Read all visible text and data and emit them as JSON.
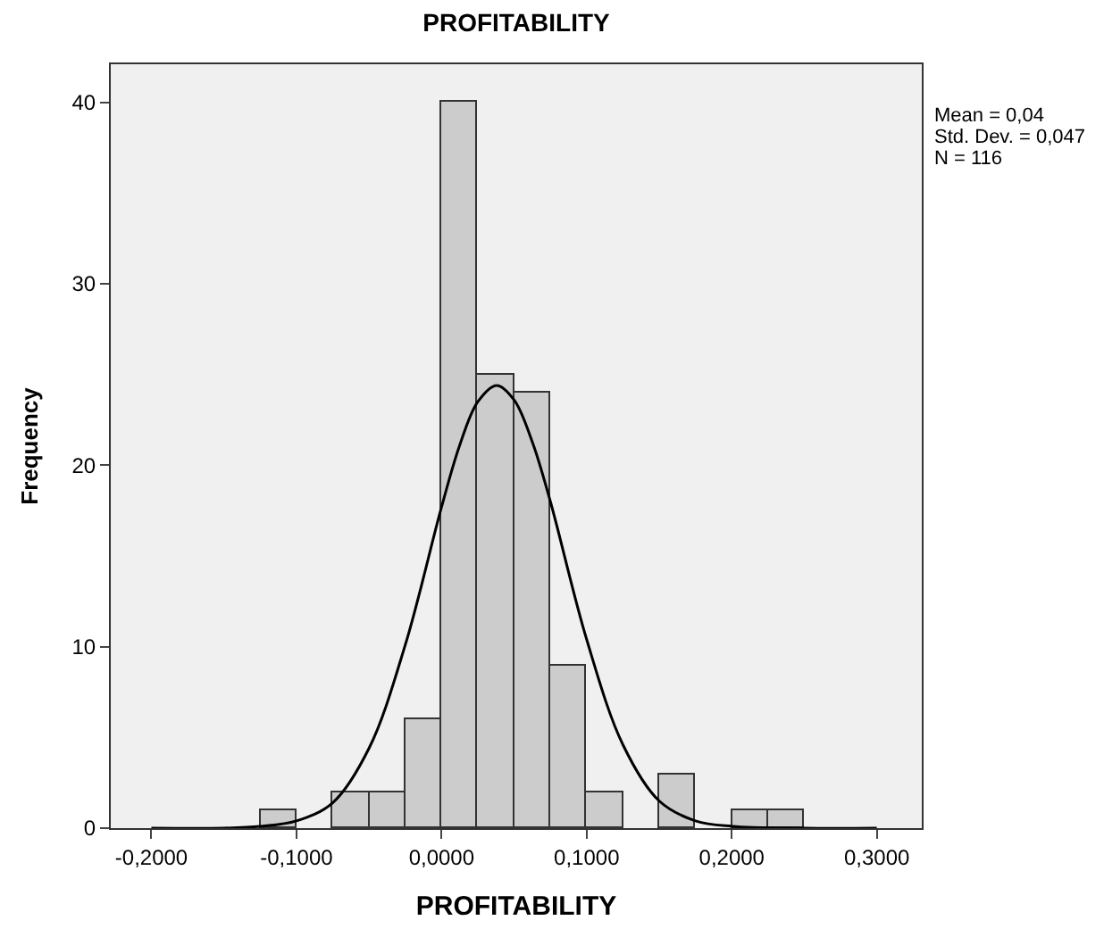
{
  "chart_data": {
    "type": "histogram",
    "title": "PROFITABILITY",
    "xlabel": "PROFITABILITY",
    "ylabel": "Frequency",
    "bins": [
      -0.125,
      -0.1,
      -0.075,
      -0.05,
      -0.025,
      0,
      0.025,
      0.05,
      0.075,
      0.1,
      0.125,
      0.15,
      0.175,
      0.2,
      0.225,
      0.25
    ],
    "values": [
      1,
      0,
      2,
      2,
      6,
      40,
      25,
      24,
      9,
      2,
      0,
      3,
      0,
      1,
      1
    ],
    "color": "#cccccc",
    "series": [
      {
        "type": "line",
        "color": "#000000",
        "x": [
          -0.2,
          -0.15,
          -0.125,
          -0.1,
          -0.075,
          -0.05,
          -0.025,
          0,
          0.0125,
          0.025,
          0.038,
          0.05,
          0.0625,
          0.075,
          0.1,
          0.125,
          0.15,
          0.175,
          0.2,
          0.25,
          0.3
        ],
        "values": [
          0,
          0,
          0.1,
          0.4,
          1.4,
          4.4,
          10.1,
          17.7,
          21.1,
          23.5,
          24.4,
          23.6,
          21.3,
          18.0,
          10.4,
          4.6,
          1.5,
          0.4,
          0.1,
          0,
          0
        ]
      }
    ],
    "xlim": [
      -0.228,
      0.331
    ],
    "xticks": [
      {
        "value": -0.2,
        "label": "-0,2000"
      },
      {
        "value": -0.1,
        "label": "-0,1000"
      },
      {
        "value": 0,
        "label": "0,0000"
      },
      {
        "value": 0.1,
        "label": "0,1000"
      },
      {
        "value": 0.2,
        "label": "0,2000"
      },
      {
        "value": 0.3,
        "label": "0,3000"
      }
    ],
    "ylim": [
      0,
      42.1
    ],
    "yticks": [
      0,
      10,
      20,
      30,
      40
    ],
    "annotations": [
      "Mean = 0,04",
      "Std. Dev. = 0,047",
      "N = 116"
    ],
    "grid": false
  }
}
